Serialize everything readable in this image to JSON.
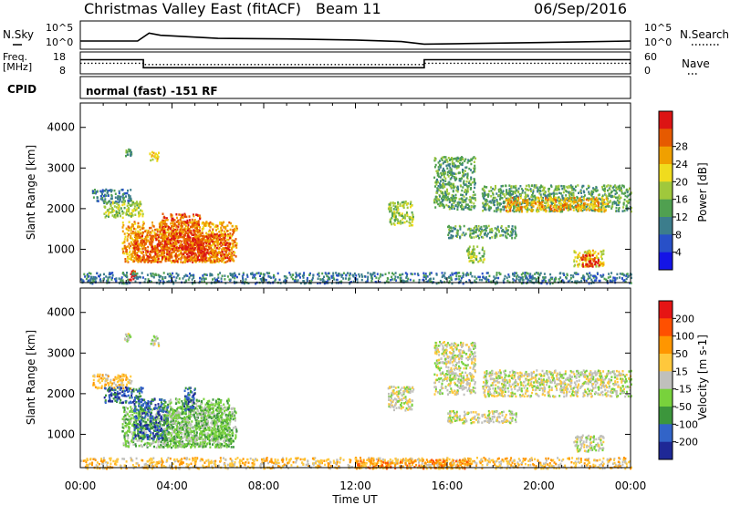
{
  "header": {
    "title": "Christmas Valley East (fitACF)",
    "beam": "Beam 11",
    "date": "06/Sep/2016"
  },
  "colors": {
    "background": "#ffffff",
    "axes": "#000000",
    "velocity_gray": "#c0c0bc"
  },
  "chart_data": [
    {
      "type": "line",
      "name": "noise-panel",
      "left_label": "N.Sky",
      "right_label": "N.Search",
      "left_ticks": [
        "10^5",
        "10^0"
      ],
      "right_ticks": [
        "10^5",
        "10^0"
      ],
      "series": [
        {
          "name": "N.Sky",
          "x_hours": [
            0,
            2.5,
            3.0,
            3.5,
            6,
            9,
            12,
            14,
            15,
            16.5,
            20,
            24
          ],
          "y_log": [
            0.35,
            0.35,
            1.1,
            0.9,
            0.6,
            0.55,
            0.45,
            0.3,
            0.05,
            0.1,
            0.2,
            0.35
          ]
        }
      ],
      "ylim_log": [
        0,
        5
      ]
    },
    {
      "type": "line",
      "name": "frequency-panel",
      "left_label": "Freq.",
      "left_unit": "[MHz]",
      "right_label": "Nave",
      "left_ticks": [
        "18",
        "8"
      ],
      "right_ticks": [
        "60",
        "0"
      ],
      "ylim": [
        8,
        18
      ],
      "series": [
        {
          "name": "Freq.",
          "x_hours": [
            0,
            2.75,
            2.75,
            15.0,
            15.0,
            24
          ],
          "values": [
            14.6,
            14.6,
            10.6,
            10.6,
            14.6,
            14.6
          ]
        },
        {
          "name": "Nave",
          "x_hours": [
            0,
            2.75,
            2.75,
            15.0,
            15.0,
            24
          ],
          "values": [
            29,
            29,
            25,
            25,
            29,
            29
          ]
        }
      ]
    },
    {
      "type": "table",
      "name": "cpid-panel",
      "label": "CPID",
      "value": "normal (fast) -151 RF"
    },
    {
      "type": "heatmap",
      "name": "power-panel",
      "ylabel": "Slant Range [km]",
      "yticks": [
        1000,
        2000,
        3000,
        4000
      ],
      "ylim": [
        180,
        4600
      ],
      "xlim_hours": [
        0,
        24
      ],
      "colorbar": {
        "label": "Power [dB]",
        "ticks": [
          "4",
          "8",
          "12",
          "16",
          "20",
          "24",
          "28"
        ],
        "colors": [
          "#1414e6",
          "#2850c8",
          "#3c7d8c",
          "#50a050",
          "#a0c83c",
          "#f0dc1e",
          "#f0a000",
          "#e65a00",
          "#dc1414"
        ]
      },
      "regions": [
        {
          "x": [
            1.9,
            2.2
          ],
          "y": [
            3300,
            3500
          ],
          "level": 3
        },
        {
          "x": [
            3.0,
            3.4
          ],
          "y": [
            3200,
            3450
          ],
          "level": 5
        },
        {
          "x": [
            0.5,
            2.2
          ],
          "y": [
            2150,
            2500
          ],
          "level": 2
        },
        {
          "x": [
            1.0,
            2.7
          ],
          "y": [
            1800,
            2200
          ],
          "level": 4
        },
        {
          "x": [
            1.8,
            6.8
          ],
          "y": [
            700,
            1700
          ],
          "level": 6
        },
        {
          "x": [
            2.3,
            6.5
          ],
          "y": [
            700,
            1400
          ],
          "level": 7
        },
        {
          "x": [
            3.5,
            5.2
          ],
          "y": [
            1000,
            1900
          ],
          "level": 7
        },
        {
          "x": [
            4.5,
            5.4
          ],
          "y": [
            800,
            1300
          ],
          "level": 8
        },
        {
          "x": [
            2.1,
            2.4
          ],
          "y": [
            250,
            500
          ],
          "level": 8
        },
        {
          "x": [
            13.4,
            14.5
          ],
          "y": [
            1600,
            2200
          ],
          "level": 4
        },
        {
          "x": [
            15.4,
            17.2
          ],
          "y": [
            2000,
            3300
          ],
          "level": 3
        },
        {
          "x": [
            16.0,
            19.0
          ],
          "y": [
            1300,
            1600
          ],
          "level": 3
        },
        {
          "x": [
            16.8,
            17.6
          ],
          "y": [
            700,
            1100
          ],
          "level": 4
        },
        {
          "x": [
            17.5,
            24.0
          ],
          "y": [
            1950,
            2600
          ],
          "level": 3
        },
        {
          "x": [
            18.5,
            23.0
          ],
          "y": [
            1950,
            2300
          ],
          "level": 6
        },
        {
          "x": [
            21.5,
            22.8
          ],
          "y": [
            600,
            1000
          ],
          "level": 5
        },
        {
          "x": [
            21.8,
            22.6
          ],
          "y": [
            600,
            900
          ],
          "level": 8
        },
        {
          "x": [
            0.0,
            24.0
          ],
          "y": [
            180,
            450
          ],
          "level": 2
        }
      ]
    },
    {
      "type": "heatmap",
      "name": "velocity-panel",
      "ylabel": "Slant Range [km]",
      "yticks": [
        1000,
        2000,
        3000,
        4000
      ],
      "ylim": [
        180,
        4600
      ],
      "xlim_hours": [
        0,
        24
      ],
      "xticks": [
        "00:00",
        "04:00",
        "08:00",
        "12:00",
        "16:00",
        "20:00",
        "00:00"
      ],
      "xlabel": "Time UT",
      "colorbar": {
        "label": "Velocity [m s-1]",
        "ticks": [
          "200",
          "100",
          "50",
          "15",
          "-15",
          "-50",
          "-100",
          "-200"
        ],
        "colors": [
          "#1e2896",
          "#3264c8",
          "#3c963c",
          "#78d23c",
          "#c0c0bc",
          "#ffc83c",
          "#ff9600",
          "#ff5000",
          "#e61414"
        ]
      },
      "regions": [
        {
          "x": [
            1.9,
            2.2
          ],
          "y": [
            3300,
            3500
          ],
          "level": 4
        },
        {
          "x": [
            3.0,
            3.4
          ],
          "y": [
            3200,
            3450
          ],
          "level": 4
        },
        {
          "x": [
            0.5,
            2.2
          ],
          "y": [
            2150,
            2500
          ],
          "level": 5
        },
        {
          "x": [
            1.0,
            2.7
          ],
          "y": [
            1800,
            2200
          ],
          "level": 1
        },
        {
          "x": [
            1.8,
            6.8
          ],
          "y": [
            700,
            1700
          ],
          "level": 3
        },
        {
          "x": [
            2.3,
            3.8
          ],
          "y": [
            900,
            1900
          ],
          "level": 1
        },
        {
          "x": [
            3.6,
            6.5
          ],
          "y": [
            700,
            1900
          ],
          "level": 3
        },
        {
          "x": [
            4.5,
            5.0
          ],
          "y": [
            1600,
            2200
          ],
          "level": 1
        },
        {
          "x": [
            13.4,
            14.5
          ],
          "y": [
            1600,
            2200
          ],
          "level": 4
        },
        {
          "x": [
            15.4,
            17.2
          ],
          "y": [
            2000,
            3300
          ],
          "level": 4
        },
        {
          "x": [
            16.0,
            19.0
          ],
          "y": [
            1300,
            1600
          ],
          "level": 4
        },
        {
          "x": [
            17.5,
            24.0
          ],
          "y": [
            1950,
            2600
          ],
          "level": 4
        },
        {
          "x": [
            21.5,
            22.8
          ],
          "y": [
            600,
            1000
          ],
          "level": 4
        },
        {
          "x": [
            0.0,
            24.0
          ],
          "y": [
            180,
            450
          ],
          "level": 5
        },
        {
          "x": [
            12.0,
            17.0
          ],
          "y": [
            180,
            400
          ],
          "level": 6
        }
      ]
    }
  ]
}
